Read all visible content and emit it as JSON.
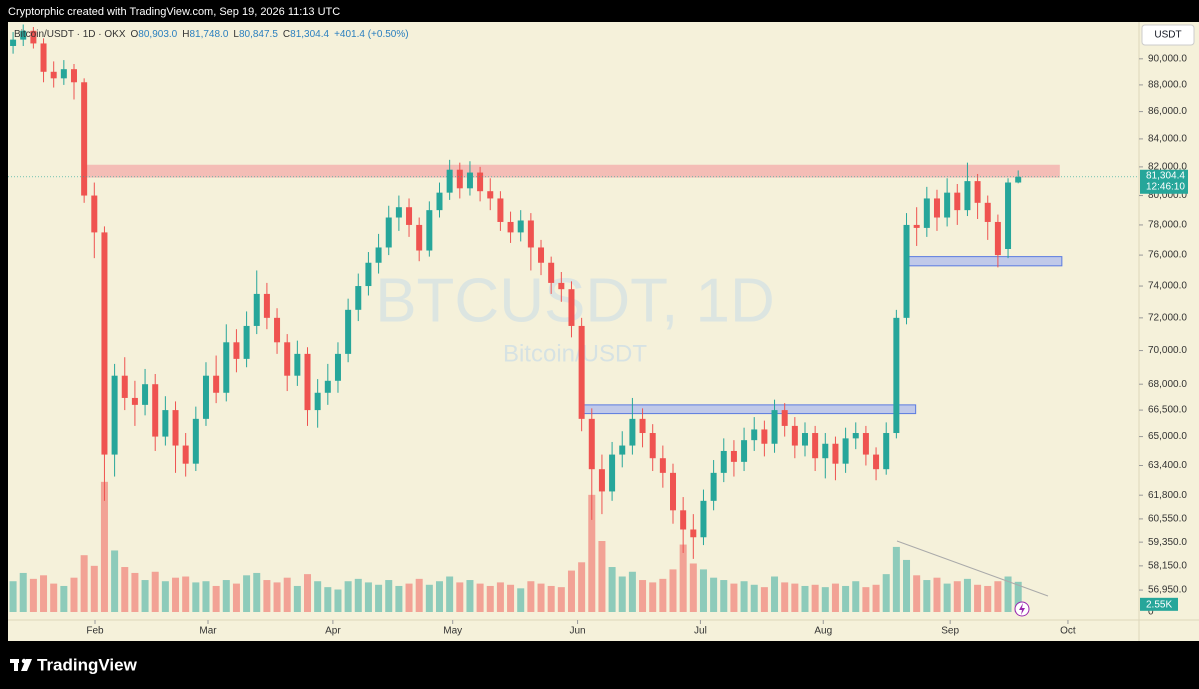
{
  "header": "Cryptorphic created with TradingView.com, Sep 19, 2026 11:13 UTC",
  "logo": "TradingView",
  "chart_data": {
    "type": "candlestick",
    "watermark": "BTCUSDT, 1D",
    "watermark_sub": "Bitcoin/USDT",
    "legend": {
      "symbol": "Bitcoin/USDT · 1D · OKX",
      "items": [
        "O",
        "80,903.0",
        "H",
        "81,748.0",
        "L",
        "80,847.5",
        "C",
        "81,304.4",
        "+401.4 (+0.50%)"
      ]
    },
    "currency": "USDT",
    "last_price_label": "81,304.4",
    "countdown": "12:46:10",
    "volume_label": "2.55K",
    "up_color": "#26a69a",
    "down_color": "#ef5350",
    "log_scale": true,
    "candles": {
      "open": [
        91000,
        91500,
        92200,
        91200,
        89000,
        88500,
        89200,
        88200,
        80000,
        77500,
        64000,
        68500,
        67200,
        66800,
        68000,
        65000,
        66500,
        64500,
        63500,
        66000,
        68500,
        67500,
        70500,
        69500,
        71500,
        73500,
        72000,
        70500,
        68500,
        69800,
        66500,
        67500,
        68200,
        69800,
        72500,
        74000,
        75500,
        76500,
        78500,
        79200,
        78000,
        76300,
        79000,
        80200,
        81800,
        80500,
        81600,
        80300,
        79800,
        78200,
        77500,
        78300,
        76500,
        75500,
        74200,
        73800,
        71500,
        66000,
        63200,
        62000,
        64000,
        64500,
        66000,
        65200,
        63800,
        63000,
        61000,
        60000,
        59600,
        61500,
        63000,
        64200,
        63600,
        64800,
        65400,
        64600,
        66500,
        65600,
        64500,
        65200,
        63800,
        64600,
        63500,
        64900,
        65200,
        64000,
        63200,
        65200,
        72000,
        78000,
        77800,
        79800,
        78500,
        80200,
        79000,
        81000,
        79500,
        78200,
        76400,
        80903
      ],
      "high": [
        92100,
        92700,
        92500,
        91600,
        89800,
        89900,
        89600,
        88500,
        80900,
        77900,
        69200,
        69600,
        68200,
        68900,
        68600,
        67300,
        67000,
        65200,
        66700,
        69300,
        69700,
        71600,
        71300,
        72400,
        75000,
        74200,
        72600,
        71000,
        70600,
        70200,
        68300,
        69200,
        70500,
        73200,
        74800,
        76200,
        77400,
        79300,
        80000,
        79800,
        78500,
        79600,
        80900,
        82500,
        82300,
        82400,
        82000,
        81200,
        80300,
        78900,
        79000,
        78800,
        77000,
        75900,
        74900,
        74300,
        72000,
        66600,
        64000,
        64700,
        65300,
        67200,
        66600,
        65700,
        64500,
        63500,
        61700,
        60800,
        62100,
        63700,
        64900,
        64800,
        65500,
        66100,
        65900,
        67100,
        66900,
        66100,
        65800,
        65600,
        65200,
        65000,
        65500,
        65800,
        65600,
        64400,
        65800,
        72500,
        78800,
        79200,
        80600,
        80400,
        81200,
        80800,
        82300,
        81500,
        80000,
        78700,
        81200,
        81748
      ],
      "low": [
        90400,
        91000,
        90800,
        88200,
        87800,
        88000,
        86900,
        79500,
        75800,
        61500,
        62800,
        66500,
        65600,
        66200,
        64200,
        64500,
        63000,
        62800,
        63100,
        65600,
        66900,
        67000,
        68700,
        69000,
        71000,
        71300,
        69800,
        67600,
        67900,
        65600,
        65500,
        66800,
        67500,
        69300,
        71800,
        73400,
        74800,
        76000,
        77600,
        77200,
        75600,
        75900,
        78500,
        79700,
        79800,
        80000,
        79600,
        79000,
        77600,
        76800,
        76900,
        75000,
        74700,
        73500,
        73000,
        70800,
        65300,
        60500,
        60800,
        61500,
        63300,
        64000,
        64400,
        63100,
        62200,
        60300,
        58800,
        58500,
        59200,
        61000,
        62500,
        62800,
        63100,
        64200,
        63900,
        64100,
        65000,
        63800,
        63900,
        63100,
        62700,
        62600,
        63000,
        64300,
        63400,
        62600,
        62900,
        64900,
        71600,
        76600,
        77200,
        77600,
        77900,
        78000,
        78600,
        78400,
        77000,
        75200,
        75800,
        80847.5
      ],
      "close": [
        91500,
        92200,
        91200,
        89000,
        88500,
        89200,
        88200,
        80000,
        77500,
        64000,
        68500,
        67200,
        66800,
        68000,
        65000,
        66500,
        64500,
        63500,
        66000,
        68500,
        67500,
        70500,
        69500,
        71500,
        73500,
        72000,
        70500,
        68500,
        69800,
        66500,
        67500,
        68200,
        69800,
        72500,
        74000,
        75500,
        76500,
        78500,
        79200,
        78000,
        76300,
        79000,
        80200,
        81800,
        80500,
        81600,
        80300,
        79800,
        78200,
        77500,
        78300,
        76500,
        75500,
        74200,
        73800,
        71500,
        66000,
        63200,
        62000,
        64000,
        64500,
        66000,
        65200,
        63800,
        63000,
        61000,
        60000,
        59600,
        61500,
        63000,
        64200,
        63600,
        64800,
        65400,
        64600,
        66500,
        65600,
        64500,
        65200,
        63800,
        64600,
        63500,
        64900,
        65200,
        64000,
        63200,
        65200,
        72000,
        78000,
        77800,
        79800,
        78500,
        80200,
        79000,
        81000,
        79500,
        78200,
        76000,
        80903,
        81304.4
      ]
    },
    "volume": [
      2600,
      3300,
      2800,
      3100,
      2400,
      2200,
      2900,
      4800,
      3900,
      11000,
      5200,
      3800,
      3300,
      2700,
      3400,
      2600,
      2900,
      3000,
      2500,
      2600,
      2200,
      2700,
      2400,
      3100,
      3300,
      2700,
      2500,
      2900,
      2200,
      3200,
      2600,
      2100,
      1900,
      2600,
      2800,
      2500,
      2300,
      2700,
      2200,
      2400,
      2800,
      2300,
      2600,
      3000,
      2500,
      2700,
      2400,
      2200,
      2500,
      2300,
      2000,
      2600,
      2400,
      2200,
      2100,
      3500,
      4200,
      9900,
      6000,
      3800,
      3000,
      3400,
      2700,
      2500,
      2800,
      3600,
      5700,
      4100,
      3600,
      2900,
      2700,
      2400,
      2600,
      2300,
      2100,
      3000,
      2500,
      2400,
      2200,
      2300,
      2100,
      2400,
      2200,
      2600,
      2100,
      2300,
      3200,
      5500,
      4400,
      3100,
      2700,
      2900,
      2400,
      2600,
      2800,
      2300,
      2200,
      2600,
      3000,
      2550
    ],
    "vlim": [
      0,
      12000
    ],
    "vticks": [
      {
        "value": 0,
        "label": "0"
      }
    ],
    "zones": [
      {
        "low": 81250,
        "high": 82150,
        "start": 6.8,
        "end": 103.1,
        "color": "#f4a6a6"
      },
      {
        "low": 66300,
        "high": 66800,
        "start": 56.1,
        "end": 88.9,
        "color": "#a9b8f0"
      },
      {
        "low": 75300,
        "high": 75900,
        "start": 87.8,
        "end": 103.3,
        "color": "#a9b8f0"
      }
    ],
    "xlim": [
      -0.5,
      110.8
    ],
    "xticks": [
      {
        "value": 8.07,
        "label": "Feb"
      },
      {
        "value": 19.2,
        "label": "Mar"
      },
      {
        "value": 31.5,
        "label": "Apr"
      },
      {
        "value": 43.3,
        "label": "May"
      },
      {
        "value": 55.6,
        "label": "Jun"
      },
      {
        "value": 67.7,
        "label": "Jul"
      },
      {
        "value": 79.8,
        "label": "Aug"
      },
      {
        "value": 92.3,
        "label": "Sep"
      },
      {
        "value": 103.9,
        "label": "Oct"
      }
    ],
    "ylim": [
      55500,
      92900
    ],
    "yticks": [
      {
        "value": 90000,
        "label": "90,000.0"
      },
      {
        "value": 88000,
        "label": "88,000.0"
      },
      {
        "value": 86000,
        "label": "86,000.0"
      },
      {
        "value": 84000,
        "label": "84,000.0"
      },
      {
        "value": 82000,
        "label": "82,000.0"
      },
      {
        "value": 80000,
        "label": "80,000.0"
      },
      {
        "value": 78000,
        "label": "78,000.0"
      },
      {
        "value": 76000,
        "label": "76,000.0"
      },
      {
        "value": 74000,
        "label": "74,000.0"
      },
      {
        "value": 72000,
        "label": "72,000.0"
      },
      {
        "value": 70000,
        "label": "70,000.0"
      },
      {
        "value": 68000,
        "label": "68,000.0"
      },
      {
        "value": 66500,
        "label": "66,500.0"
      },
      {
        "value": 65000,
        "label": "65,000.0"
      },
      {
        "value": 63400,
        "label": "63,400.0"
      },
      {
        "value": 61800,
        "label": "61,800.0"
      },
      {
        "value": 60550,
        "label": "60,550.0"
      },
      {
        "value": 59350,
        "label": "59,350.0"
      },
      {
        "value": 58150,
        "label": "58,150.0"
      },
      {
        "value": 56950,
        "label": "56,950.0"
      }
    ]
  }
}
